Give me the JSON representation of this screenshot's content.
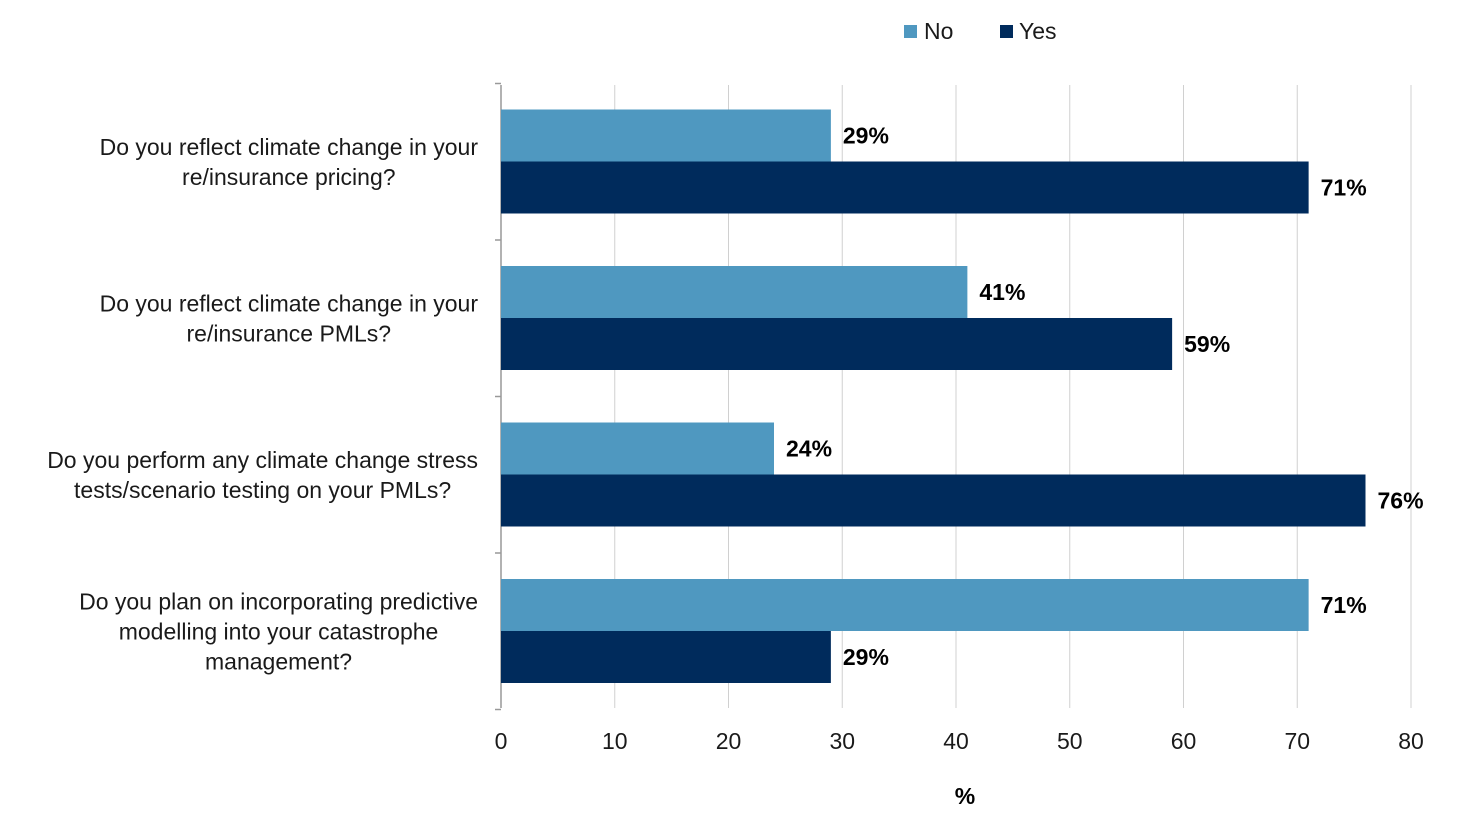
{
  "chart_data": {
    "type": "bar",
    "orientation": "horizontal",
    "categories": [
      "Do you reflect climate change in your re/insurance pricing?",
      "Do you reflect climate change in your re/insurance PMLs?",
      "Do you perform any climate change stress tests/scenario testing on your PMLs?",
      "Do you plan on incorporating predictive modelling into your catastrophe management?"
    ],
    "series": [
      {
        "name": "No",
        "color": "#4F98C0",
        "values": [
          29,
          41,
          24,
          71
        ],
        "labels": [
          "29%",
          "41%",
          "24%",
          "71%"
        ]
      },
      {
        "name": "Yes",
        "color": "#002B5C",
        "values": [
          71,
          59,
          76,
          29
        ],
        "labels": [
          "71%",
          "59%",
          "76%",
          "29%"
        ]
      }
    ],
    "xlabel": "%",
    "xlim": [
      0,
      80
    ],
    "xticks": [
      "0",
      "10",
      "20",
      "30",
      "40",
      "50",
      "60",
      "70",
      "80"
    ],
    "grid": true,
    "legend_position": "top"
  }
}
